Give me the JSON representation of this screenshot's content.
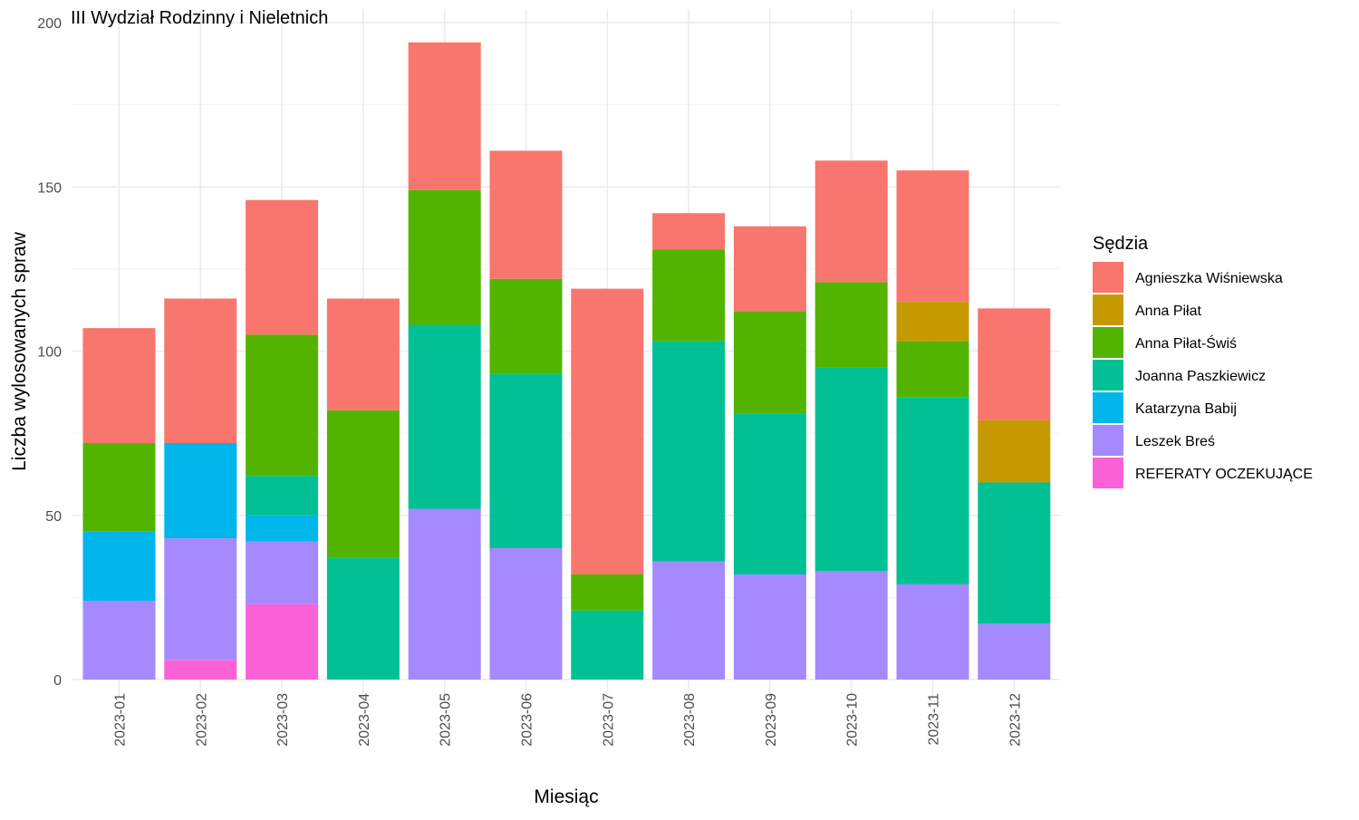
{
  "chart_data": {
    "type": "bar",
    "stacked": true,
    "title": "III Wydział Rodzinny i Nieletnich",
    "xlabel": "Miesiąc",
    "ylabel": "Liczba wylosowanych spraw",
    "ylim": [
      0,
      200
    ],
    "yticks": [
      0,
      50,
      100,
      150,
      200
    ],
    "grid": true,
    "legend_title": "Sędzia",
    "legend_position": "right",
    "categories": [
      "2023-01",
      "2023-02",
      "2023-03",
      "2023-04",
      "2023-05",
      "2023-06",
      "2023-07",
      "2023-08",
      "2023-09",
      "2023-10",
      "2023-11",
      "2023-12"
    ],
    "stack_order_bottom_to_top": [
      "REFERATY OCZEKUJĄCE",
      "Leszek Breś",
      "Katarzyna Babij",
      "Joanna Paszkiewicz",
      "Anna Piłat-Świś",
      "Anna Piłat",
      "Agnieszka Wiśniewska"
    ],
    "series": [
      {
        "name": "Agnieszka Wiśniewska",
        "color": "#F8766D",
        "values": [
          35,
          44,
          41,
          34,
          45,
          39,
          87,
          11,
          26,
          37,
          40,
          34
        ]
      },
      {
        "name": "Anna Piłat",
        "color": "#C49A00",
        "values": [
          0,
          0,
          0,
          0,
          0,
          0,
          0,
          0,
          0,
          0,
          12,
          19
        ]
      },
      {
        "name": "Anna Piłat-Świś",
        "color": "#53B400",
        "values": [
          27,
          0,
          43,
          45,
          41,
          29,
          11,
          28,
          31,
          26,
          17,
          0
        ]
      },
      {
        "name": "Joanna Paszkiewicz",
        "color": "#00C094",
        "values": [
          0,
          0,
          12,
          37,
          56,
          53,
          21,
          67,
          49,
          62,
          57,
          43
        ]
      },
      {
        "name": "Katarzyna Babij",
        "color": "#00B6EB",
        "values": [
          21,
          29,
          8,
          0,
          0,
          0,
          0,
          0,
          0,
          0,
          0,
          0
        ]
      },
      {
        "name": "Leszek Breś",
        "color": "#A58AFF",
        "values": [
          24,
          37,
          19,
          0,
          52,
          40,
          0,
          36,
          32,
          33,
          29,
          17
        ]
      },
      {
        "name": "REFERATY OCZEKUJĄCE",
        "color": "#FB61D7",
        "values": [
          0,
          6,
          23,
          0,
          0,
          0,
          0,
          0,
          0,
          0,
          0,
          0
        ]
      }
    ]
  }
}
